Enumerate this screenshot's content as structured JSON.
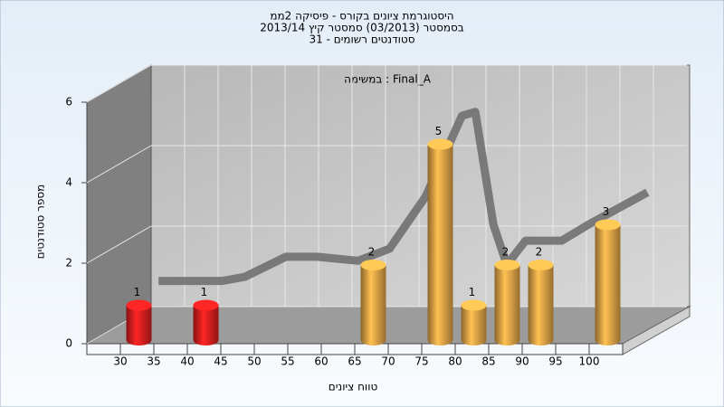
{
  "chart_data": {
    "type": "histogram",
    "title_lines": [
      "היסטוגרמת ציונים בקורס - פיסיקה 2ממ",
      "בסמסטר  (03/2013)  סמסטר קיץ  2013/14",
      "סטודנטים רשומים - 31"
    ],
    "annotation": "במשימה : Final_A",
    "x_label": "טווח ציונים",
    "y_label": "מספר סטודנטים",
    "bins": [
      30,
      35,
      40,
      45,
      50,
      55,
      60,
      65,
      70,
      75,
      80,
      85,
      90,
      95,
      100,
      105
    ],
    "values": [
      1,
      0,
      1,
      0,
      0,
      0,
      0,
      2,
      0,
      5,
      1,
      2,
      2,
      0,
      3
    ],
    "colors": [
      "#e02020",
      "#e8a848",
      "#e02020",
      "#e8a848",
      "#e8a848",
      "#e8a848",
      "#e8a848",
      "#e8a848",
      "#e8a848",
      "#e8a848",
      "#e8a848",
      "#e8a848",
      "#e8a848",
      "#e8a848",
      "#e8a848"
    ],
    "trend": {
      "x": [
        30.9,
        40.4,
        43.8,
        49.9,
        54.6,
        60.7,
        65.4,
        70.8,
        76.2,
        78.2,
        80.9,
        82.9,
        85.7,
        91.1,
        95.1,
        103.9
      ],
      "values": [
        1.1,
        1.1,
        1.2,
        1.7,
        1.7,
        1.6,
        1.9,
        3.2,
        5.2,
        5.3,
        2.5,
        1.5,
        2.1,
        2.1,
        2.5,
        3.3
      ],
      "color": "#707070"
    },
    "xlim": [
      25,
      105
    ],
    "xticks": [
      30,
      35,
      40,
      45,
      50,
      55,
      60,
      65,
      70,
      75,
      80,
      85,
      90,
      95,
      100
    ],
    "ylim": [
      0,
      6
    ],
    "yticks": [
      0,
      2,
      4,
      6
    ],
    "grid": true
  }
}
